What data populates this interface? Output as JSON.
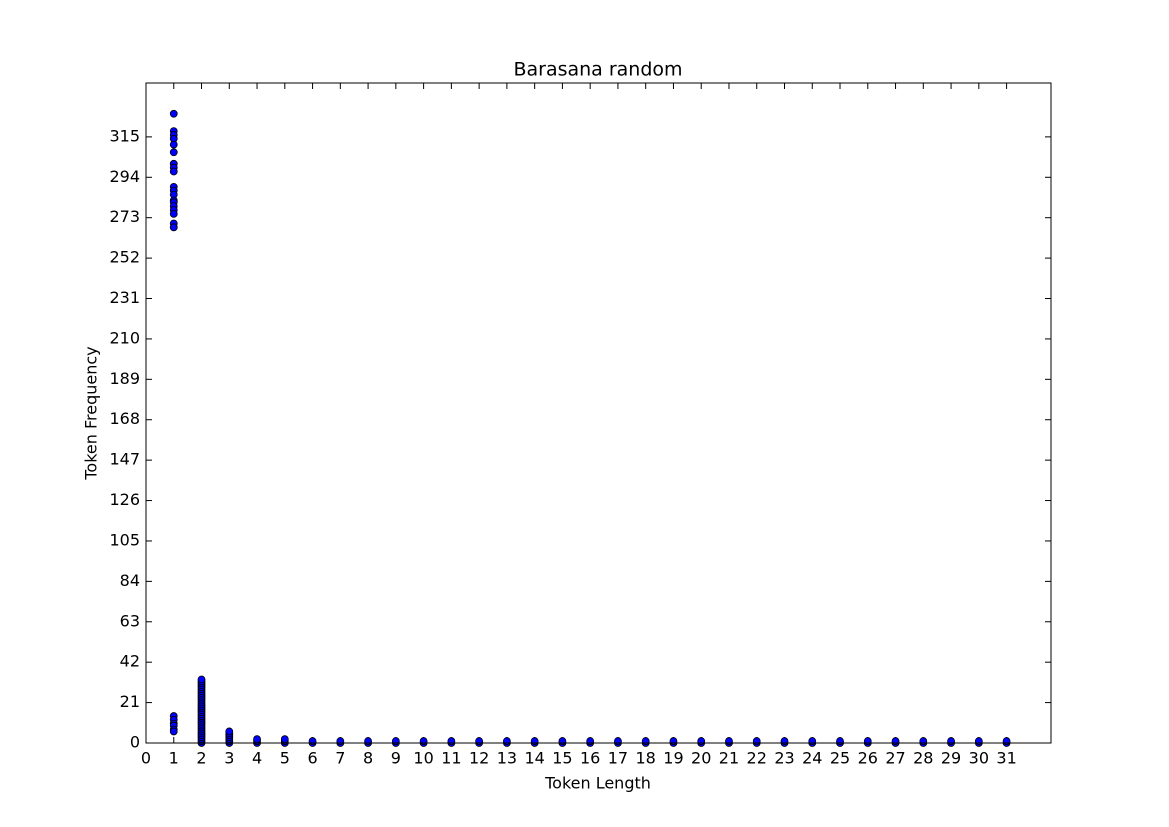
{
  "chart_data": {
    "type": "scatter",
    "title": "Barasana random",
    "x_label": "Token Length",
    "y_label": "Token Frequency",
    "color": "#0000ff",
    "x": [
      1,
      1,
      1,
      1,
      1,
      1,
      1,
      1,
      1,
      1,
      1,
      1,
      1,
      1,
      1,
      1,
      1,
      1,
      1,
      1,
      1,
      1,
      1,
      1,
      1,
      2,
      2,
      2,
      2,
      2,
      2,
      2,
      2,
      2,
      2,
      2,
      2,
      2,
      2,
      2,
      2,
      2,
      2,
      2,
      2,
      2,
      2,
      2,
      2,
      2,
      2,
      2,
      2,
      2,
      2,
      2,
      2,
      2,
      2,
      3,
      3,
      3,
      3,
      3,
      3,
      3,
      4,
      4,
      4,
      5,
      5,
      5,
      6,
      6,
      7,
      7,
      8,
      8,
      9,
      9,
      10,
      10,
      11,
      11,
      12,
      12,
      13,
      13,
      14,
      14,
      15,
      15,
      16,
      16,
      17,
      17,
      18,
      18,
      19,
      19,
      20,
      20,
      21,
      21,
      22,
      22,
      23,
      23,
      24,
      24,
      25,
      25,
      26,
      26,
      27,
      27,
      28,
      28,
      29,
      29,
      30,
      30,
      31,
      31
    ],
    "values": [
      327,
      318,
      316,
      314,
      311,
      307,
      301,
      299,
      297,
      289,
      287,
      285,
      282,
      281,
      279,
      277,
      275,
      270,
      268,
      14,
      12,
      10,
      9,
      7,
      6,
      0,
      1,
      2,
      3,
      4,
      5,
      6,
      7,
      8,
      9,
      10,
      11,
      12,
      13,
      14,
      15,
      16,
      17,
      18,
      19,
      20,
      21,
      22,
      23,
      24,
      25,
      26,
      27,
      28,
      29,
      30,
      31,
      32,
      33,
      0,
      1,
      2,
      3,
      4,
      5,
      6,
      0,
      1,
      2,
      0,
      1,
      2,
      0,
      1,
      0,
      1,
      0,
      1,
      0,
      1,
      0,
      1,
      0,
      1,
      0,
      1,
      0,
      1,
      0,
      1,
      0,
      1,
      0,
      1,
      0,
      1,
      0,
      1,
      0,
      1,
      0,
      1,
      0,
      1,
      0,
      1,
      0,
      1,
      0,
      1,
      0,
      1,
      0,
      1,
      0,
      1,
      0,
      1,
      0,
      1,
      0,
      1,
      0,
      1
    ],
    "xlim": [
      0,
      32.6
    ],
    "ylim": [
      0,
      343
    ],
    "xticks": [
      0,
      1,
      2,
      3,
      4,
      5,
      6,
      7,
      8,
      9,
      10,
      11,
      12,
      13,
      14,
      15,
      16,
      17,
      18,
      19,
      20,
      21,
      22,
      23,
      24,
      25,
      26,
      27,
      28,
      29,
      30,
      31
    ],
    "yticks": [
      0,
      21,
      42,
      63,
      84,
      105,
      126,
      147,
      168,
      189,
      210,
      231,
      252,
      273,
      294,
      315
    ]
  }
}
